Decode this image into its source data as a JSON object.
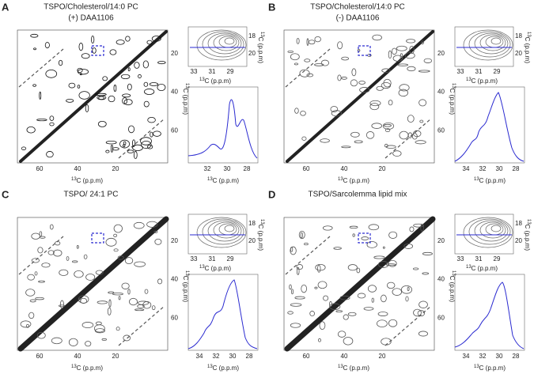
{
  "axis_label": {
    "sup": "13",
    "text": "C (p.p.m)"
  },
  "panels": [
    {
      "letter": "A",
      "title": [
        "TSPO/Cholesterol/14:0 PC",
        "(+) DAA1106"
      ],
      "main": {
        "xticks": [
          60,
          40,
          20
        ],
        "yticks": [
          20,
          40,
          60
        ]
      },
      "inset": {
        "xticks": [
          33,
          31,
          29
        ],
        "yticks": [
          18,
          20
        ]
      },
      "trace": {
        "xticks": [
          32,
          30,
          28
        ]
      }
    },
    {
      "letter": "B",
      "title": [
        "TSPO/Cholesterol/14:0 PC",
        "(-) DAA1106"
      ],
      "main": {
        "xticks": [
          60,
          40,
          20
        ],
        "yticks": [
          20,
          40,
          60
        ]
      },
      "inset": {
        "xticks": [
          33,
          31,
          29
        ],
        "yticks": [
          18,
          20
        ]
      },
      "trace": {
        "xticks": [
          34,
          32,
          30,
          28
        ]
      }
    },
    {
      "letter": "C",
      "title": [
        "TSPO/ 24:1 PC"
      ],
      "main": {
        "xticks": [
          60,
          40,
          20
        ],
        "yticks": [
          20,
          40,
          60
        ]
      },
      "inset": {
        "xticks": [
          33,
          31,
          29
        ],
        "yticks": [
          18,
          20
        ]
      },
      "trace": {
        "xticks": [
          34,
          32,
          30,
          28
        ]
      }
    },
    {
      "letter": "D",
      "title": [
        "TSPO/Sarcolemma lipid mix"
      ],
      "main": {
        "xticks": [
          60,
          40,
          20
        ],
        "yticks": [
          20,
          40,
          60
        ]
      },
      "inset": {
        "xticks": [
          33,
          31,
          29
        ],
        "yticks": [
          18,
          20
        ]
      },
      "trace": {
        "xticks": [
          34,
          32,
          30,
          28
        ]
      }
    }
  ]
}
